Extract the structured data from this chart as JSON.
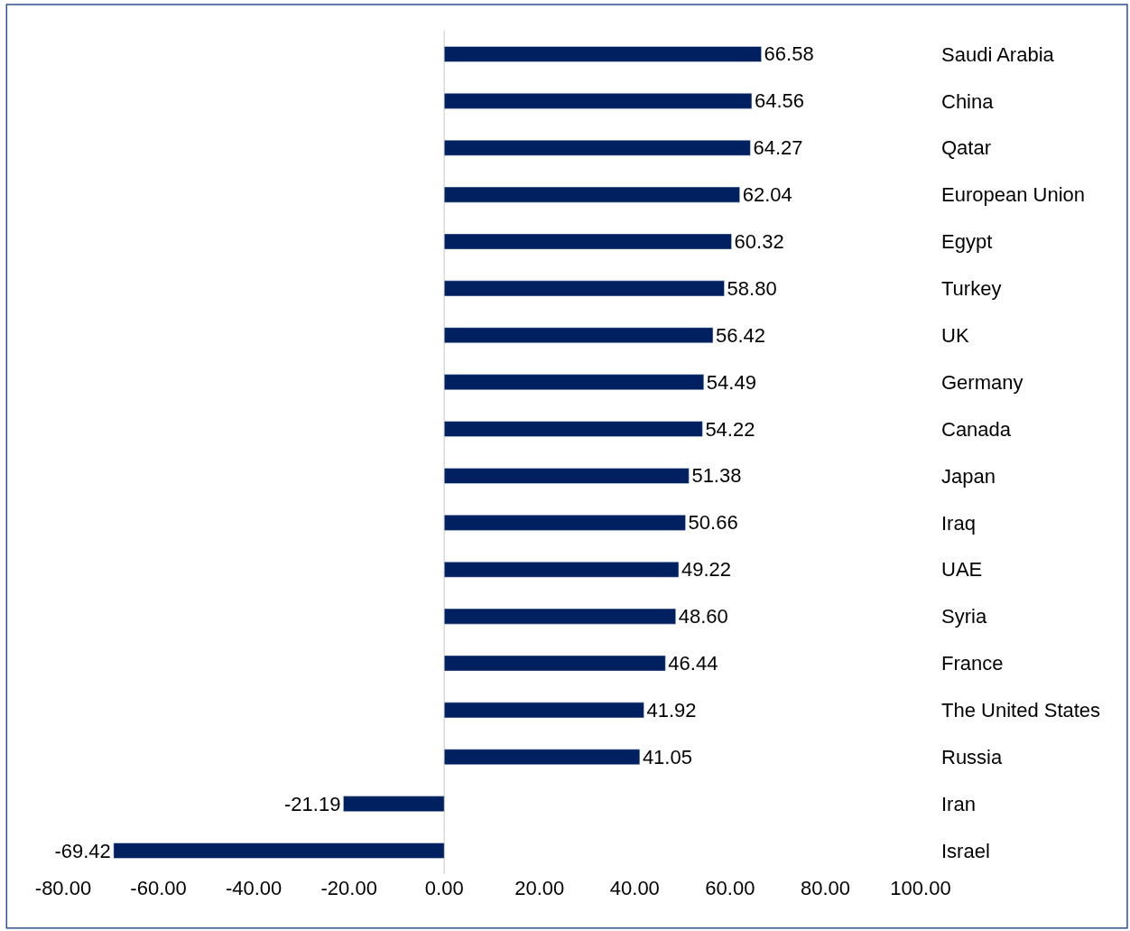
{
  "chart_data": {
    "type": "bar",
    "orientation": "horizontal",
    "categories": [
      "Saudi Arabia",
      "China",
      "Qatar",
      "European Union",
      "Egypt",
      "Turkey",
      "UK",
      "Germany",
      "Canada",
      "Japan",
      "Iraq",
      "UAE",
      "Syria",
      "France",
      "The United States",
      "Russia",
      "Iran",
      "Israel"
    ],
    "values": [
      66.58,
      64.56,
      64.27,
      62.04,
      60.32,
      58.8,
      56.42,
      54.49,
      54.22,
      51.38,
      50.66,
      49.22,
      48.6,
      46.44,
      41.92,
      41.05,
      -21.19,
      -69.42
    ],
    "value_labels": [
      "66.58",
      "64.56",
      "64.27",
      "62.04",
      "60.32",
      "58.80",
      "56.42",
      "54.49",
      "54.22",
      "51.38",
      "50.66",
      "49.22",
      "48.60",
      "46.44",
      "41.92",
      "41.05",
      "-21.19",
      "-69.42"
    ],
    "color": "#002060",
    "xlim": [
      -80,
      100
    ],
    "xticks": [
      {
        "value": -80,
        "label": "-80.00"
      },
      {
        "value": -60,
        "label": "-60.00"
      },
      {
        "value": -40,
        "label": "-40.00"
      },
      {
        "value": -20,
        "label": "-20.00"
      },
      {
        "value": 0,
        "label": "0.00"
      },
      {
        "value": 20,
        "label": "20.00"
      },
      {
        "value": 40,
        "label": "40.00"
      },
      {
        "value": 60,
        "label": "60.00"
      },
      {
        "value": 80,
        "label": "80.00"
      },
      {
        "value": 100,
        "label": "100.00"
      }
    ],
    "ref_lines": [
      {
        "axis": "x",
        "value": 0,
        "color": "#d9d9d9"
      }
    ],
    "grid": false,
    "legend": false
  }
}
